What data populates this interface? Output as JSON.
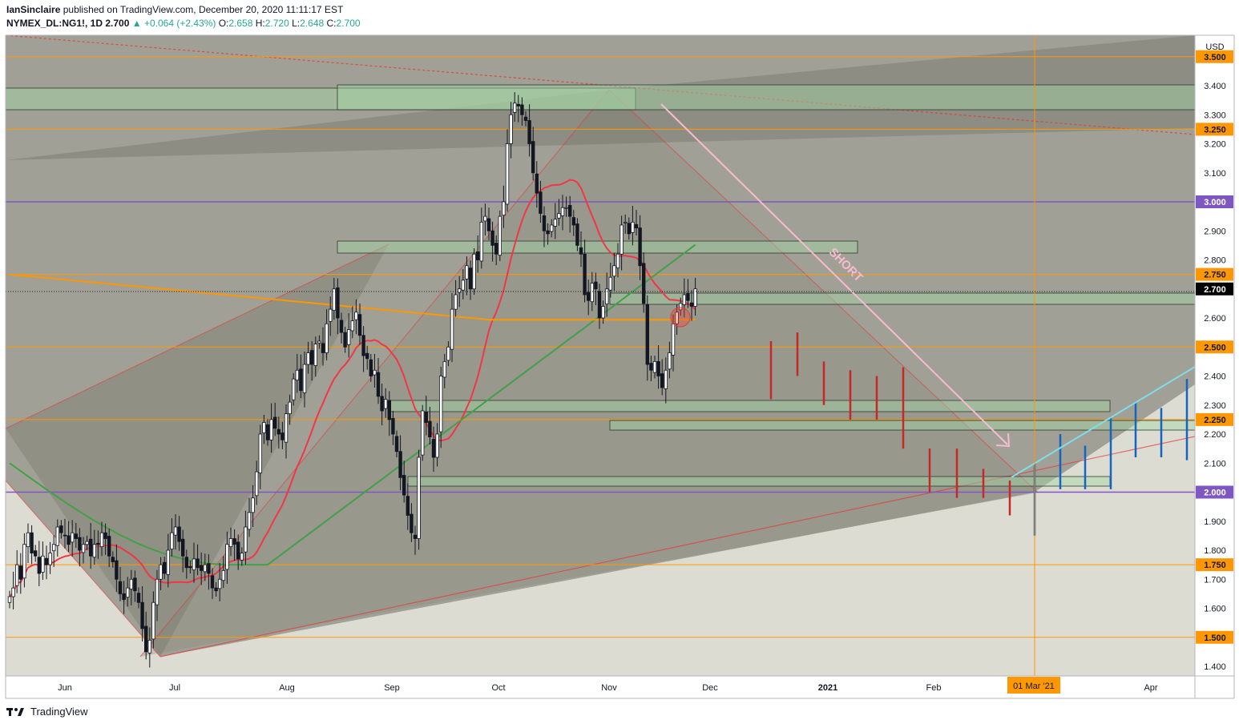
{
  "header": {
    "publisher": "IanSinclaire",
    "published_text": "published on TradingView.com, December 20, 2020 11:11:17 EST",
    "symbol": "NYMEX_DL:NG1!, 1D",
    "last": "2.700",
    "change": "▲ +0.064 (+2.43%)",
    "o_label": "O:",
    "o": "2.658",
    "h_label": "H:",
    "h": "2.720",
    "l_label": "L:",
    "l": "2.648",
    "c_label": "C:",
    "c": "2.700"
  },
  "footer": {
    "brand": "TradingView"
  },
  "colors": {
    "up": "#ffffff",
    "down": "#131722",
    "ma_red": "#f23645",
    "ma_green": "#43a047",
    "ma_orange": "#ff9800",
    "hline_orange": "#ff9800",
    "hline_purple": "#7e57c2",
    "zone": "#a5d6a7",
    "pred_red": "#c62828",
    "pred_blue": "#1565c0",
    "trend_cyan": "#80deea"
  },
  "chart_data": {
    "type": "candlestick",
    "currency": "USD",
    "ylim": [
      1.36,
      3.58
    ],
    "yticks": [
      "3.400",
      "3.300",
      "3.200",
      "3.100",
      "2.900",
      "2.800",
      "2.600",
      "2.400",
      "2.300",
      "2.200",
      "2.100",
      "1.900",
      "1.800",
      "1.700",
      "1.600",
      "1.400"
    ],
    "xlabels": [
      "Jun",
      "Jul",
      "Aug",
      "Sep",
      "Oct",
      "Nov",
      "Dec",
      "2021",
      "Feb",
      "Apr"
    ],
    "highlight_x_label": "01 Mar '21",
    "price_labels": [
      {
        "value": 3.5,
        "text": "3.500",
        "kind": "orange"
      },
      {
        "value": 3.25,
        "text": "3.250",
        "kind": "orange"
      },
      {
        "value": 3.0,
        "text": "3.000",
        "kind": "purple"
      },
      {
        "value": 2.75,
        "text": "2.750",
        "kind": "orange"
      },
      {
        "value": 2.7,
        "text": "2.700",
        "kind": "last"
      },
      {
        "value": 2.5,
        "text": "2.500",
        "kind": "orange"
      },
      {
        "value": 2.25,
        "text": "2.250",
        "kind": "orange"
      },
      {
        "value": 2.0,
        "text": "2.000",
        "kind": "purple"
      },
      {
        "value": 1.75,
        "text": "1.750",
        "kind": "orange"
      },
      {
        "value": 1.5,
        "text": "1.500",
        "kind": "orange"
      }
    ],
    "annotation": "SHORT",
    "closes": [
      1.64,
      1.67,
      1.75,
      1.7,
      1.82,
      1.86,
      1.79,
      1.78,
      1.72,
      1.78,
      1.75,
      1.79,
      1.82,
      1.88,
      1.86,
      1.85,
      1.82,
      1.86,
      1.84,
      1.8,
      1.82,
      1.83,
      1.78,
      1.82,
      1.82,
      1.86,
      1.84,
      1.78,
      1.76,
      1.7,
      1.65,
      1.63,
      1.67,
      1.7,
      1.66,
      1.62,
      1.53,
      1.45,
      1.49,
      1.62,
      1.7,
      1.75,
      1.72,
      1.8,
      1.86,
      1.88,
      1.83,
      1.78,
      1.74,
      1.74,
      1.77,
      1.74,
      1.73,
      1.75,
      1.72,
      1.67,
      1.66,
      1.7,
      1.73,
      1.82,
      1.84,
      1.82,
      1.77,
      1.79,
      1.88,
      1.93,
      1.98,
      2.07,
      2.2,
      2.24,
      2.18,
      2.25,
      2.22,
      2.2,
      2.18,
      2.27,
      2.31,
      2.39,
      2.42,
      2.35,
      2.44,
      2.48,
      2.44,
      2.51,
      2.52,
      2.48,
      2.58,
      2.63,
      2.7,
      2.6,
      2.55,
      2.5,
      2.56,
      2.59,
      2.62,
      2.54,
      2.47,
      2.46,
      2.4,
      2.42,
      2.33,
      2.28,
      2.32,
      2.25,
      2.2,
      2.14,
      2.05,
      1.99,
      1.92,
      1.86,
      1.84,
      2.12,
      2.28,
      2.24,
      2.19,
      2.12,
      2.2,
      2.4,
      2.45,
      2.5,
      2.63,
      2.68,
      2.7,
      2.73,
      2.78,
      2.7,
      2.82,
      2.8,
      2.93,
      2.95,
      2.9,
      2.85,
      2.82,
      2.95,
      3.0,
      3.2,
      3.3,
      3.34,
      3.33,
      3.3,
      3.28,
      3.2,
      3.1,
      3.03,
      2.96,
      2.9,
      2.89,
      2.92,
      2.94,
      2.96,
      2.98,
      2.98,
      2.95,
      2.92,
      2.85,
      2.82,
      2.68,
      2.66,
      2.72,
      2.7,
      2.6,
      2.64,
      2.7,
      2.74,
      2.78,
      2.82,
      2.92,
      2.93,
      2.89,
      2.93,
      2.91,
      2.78,
      2.65,
      2.44,
      2.42,
      2.45,
      2.4,
      2.36,
      2.42,
      2.48,
      2.58,
      2.62,
      2.65,
      2.68,
      2.66,
      2.64,
      2.7
    ],
    "overlays": {
      "ma_red": "20-day moving average",
      "ma_green": "100-day moving average",
      "ma_orange": "200-day moving average"
    }
  }
}
